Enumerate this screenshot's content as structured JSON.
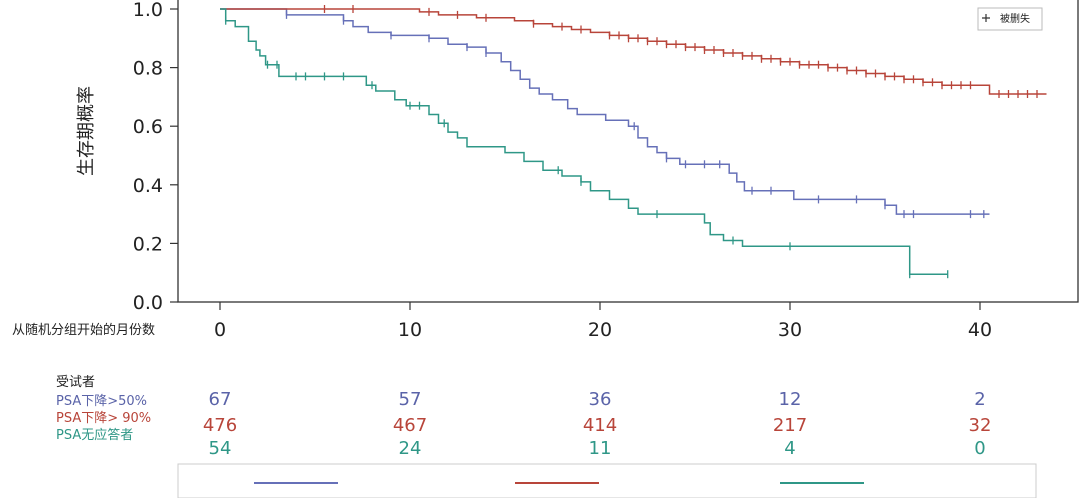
{
  "chart_data": {
    "type": "line",
    "subtype": "kaplan-meier",
    "xlabel": "从随机分组开始的月份数",
    "ylabel": "生存期概率",
    "xlim": [
      -2,
      46
    ],
    "ylim": [
      0,
      1.0
    ],
    "xticks": [
      0,
      10,
      20,
      30,
      40
    ],
    "xtick_labels": [
      "0",
      "10",
      "20",
      "30",
      "40"
    ],
    "yticks": [
      0,
      0.2,
      0.4,
      0.6,
      0.8,
      1.0
    ],
    "ytick_labels": [
      "0.0",
      "0.2",
      "0.4",
      "0.6",
      "0.8",
      "1.0"
    ],
    "legend": {
      "placement": "top-right",
      "marker": "+",
      "label": "被删失"
    },
    "series": [
      {
        "name": "PSA下降>50%",
        "color": "#6670b8",
        "steps": [
          [
            0,
            1.0
          ],
          [
            3.5,
            0.98
          ],
          [
            6.5,
            0.96
          ],
          [
            7.0,
            0.94
          ],
          [
            7.8,
            0.92
          ],
          [
            9.0,
            0.91
          ],
          [
            11.0,
            0.9
          ],
          [
            12.0,
            0.88
          ],
          [
            13.0,
            0.87
          ],
          [
            14.0,
            0.85
          ],
          [
            14.8,
            0.82
          ],
          [
            15.3,
            0.79
          ],
          [
            15.8,
            0.76
          ],
          [
            16.3,
            0.73
          ],
          [
            16.8,
            0.71
          ],
          [
            17.5,
            0.69
          ],
          [
            18.3,
            0.66
          ],
          [
            18.8,
            0.64
          ],
          [
            20.3,
            0.62
          ],
          [
            21.5,
            0.6
          ],
          [
            22.0,
            0.56
          ],
          [
            22.5,
            0.53
          ],
          [
            23.0,
            0.51
          ],
          [
            23.5,
            0.49
          ],
          [
            24.2,
            0.47
          ],
          [
            26.8,
            0.44
          ],
          [
            27.2,
            0.41
          ],
          [
            27.6,
            0.38
          ],
          [
            30.2,
            0.35
          ],
          [
            35.0,
            0.33
          ],
          [
            35.6,
            0.3
          ],
          [
            40.5,
            0.3
          ]
        ],
        "censored": [
          3.5,
          6.5,
          9.0,
          11.0,
          13.0,
          14.0,
          21.8,
          23.5,
          24.5,
          25.5,
          26.3,
          28.0,
          29.0,
          31.5,
          33.5,
          35.0,
          36.0,
          36.5,
          39.5,
          40.2
        ]
      },
      {
        "name": "PSA下降> 90%",
        "color": "#b8453a",
        "steps": [
          [
            0,
            1.0
          ],
          [
            10.5,
            0.99
          ],
          [
            11.5,
            0.98
          ],
          [
            13.5,
            0.97
          ],
          [
            15.5,
            0.96
          ],
          [
            16.5,
            0.95
          ],
          [
            17.5,
            0.94
          ],
          [
            18.5,
            0.93
          ],
          [
            19.5,
            0.92
          ],
          [
            20.5,
            0.91
          ],
          [
            21.5,
            0.9
          ],
          [
            22.5,
            0.89
          ],
          [
            23.5,
            0.88
          ],
          [
            24.5,
            0.87
          ],
          [
            25.5,
            0.86
          ],
          [
            26.5,
            0.85
          ],
          [
            27.5,
            0.84
          ],
          [
            28.5,
            0.83
          ],
          [
            29.5,
            0.82
          ],
          [
            30.5,
            0.81
          ],
          [
            32.0,
            0.8
          ],
          [
            33.0,
            0.79
          ],
          [
            34.0,
            0.78
          ],
          [
            35.0,
            0.77
          ],
          [
            36.0,
            0.76
          ],
          [
            37.0,
            0.75
          ],
          [
            38.0,
            0.74
          ],
          [
            39.0,
            0.74
          ],
          [
            40.5,
            0.71
          ],
          [
            43.5,
            0.71
          ]
        ],
        "censored": [
          5.5,
          7.0,
          11.0,
          12.5,
          14.0,
          16.5,
          18.0,
          19.0,
          20.5,
          21.0,
          21.5,
          22.0,
          22.5,
          23.0,
          23.5,
          24.0,
          24.5,
          25.0,
          25.5,
          26.0,
          26.5,
          27.0,
          27.5,
          28.0,
          28.5,
          29.0,
          29.5,
          30.0,
          30.5,
          31.0,
          31.5,
          32.0,
          32.5,
          33.0,
          33.5,
          34.0,
          34.5,
          35.0,
          35.5,
          36.0,
          36.5,
          37.0,
          37.5,
          38.0,
          38.5,
          39.0,
          39.5,
          41.0,
          41.5,
          42.0,
          42.5,
          43.0
        ]
      },
      {
        "name": "PSA无应答者",
        "color": "#2f9787",
        "steps": [
          [
            0,
            1.0
          ],
          [
            0.3,
            0.96
          ],
          [
            0.8,
            0.94
          ],
          [
            1.5,
            0.89
          ],
          [
            1.9,
            0.86
          ],
          [
            2.1,
            0.84
          ],
          [
            2.4,
            0.81
          ],
          [
            3.1,
            0.77
          ],
          [
            7.7,
            0.74
          ],
          [
            8.2,
            0.72
          ],
          [
            9.2,
            0.69
          ],
          [
            9.8,
            0.67
          ],
          [
            11.0,
            0.64
          ],
          [
            11.5,
            0.61
          ],
          [
            12.0,
            0.58
          ],
          [
            12.5,
            0.56
          ],
          [
            13.0,
            0.53
          ],
          [
            15.0,
            0.51
          ],
          [
            16.0,
            0.48
          ],
          [
            17.0,
            0.45
          ],
          [
            18.0,
            0.43
          ],
          [
            19.0,
            0.41
          ],
          [
            19.5,
            0.38
          ],
          [
            20.5,
            0.35
          ],
          [
            21.5,
            0.32
          ],
          [
            22.0,
            0.3
          ],
          [
            25.5,
            0.27
          ],
          [
            25.8,
            0.23
          ],
          [
            26.5,
            0.21
          ],
          [
            27.5,
            0.19
          ],
          [
            36.3,
            0.095
          ],
          [
            38.3,
            0.095
          ]
        ],
        "censored": [
          0.3,
          2.5,
          3.0,
          4.0,
          4.5,
          5.5,
          6.5,
          8.0,
          10.0,
          10.5,
          11.8,
          17.8,
          19.0,
          23.0,
          27.0,
          30.0,
          36.3,
          38.3
        ]
      }
    ],
    "risk_table": {
      "title": "受试者",
      "time_points": [
        0,
        10,
        20,
        30,
        40
      ],
      "groups": [
        {
          "name": "PSA下降>50%",
          "color": "#5a63a8",
          "counts": [
            "67",
            "57",
            "36",
            "12",
            "2"
          ]
        },
        {
          "name": "PSA下降> 90%",
          "color": "#b8453a",
          "counts": [
            "476",
            "467",
            "414",
            "217",
            "32"
          ]
        },
        {
          "name": "PSA无应答者",
          "color": "#2f9787",
          "counts": [
            "54",
            "24",
            "11",
            "4",
            "0"
          ]
        }
      ]
    }
  }
}
